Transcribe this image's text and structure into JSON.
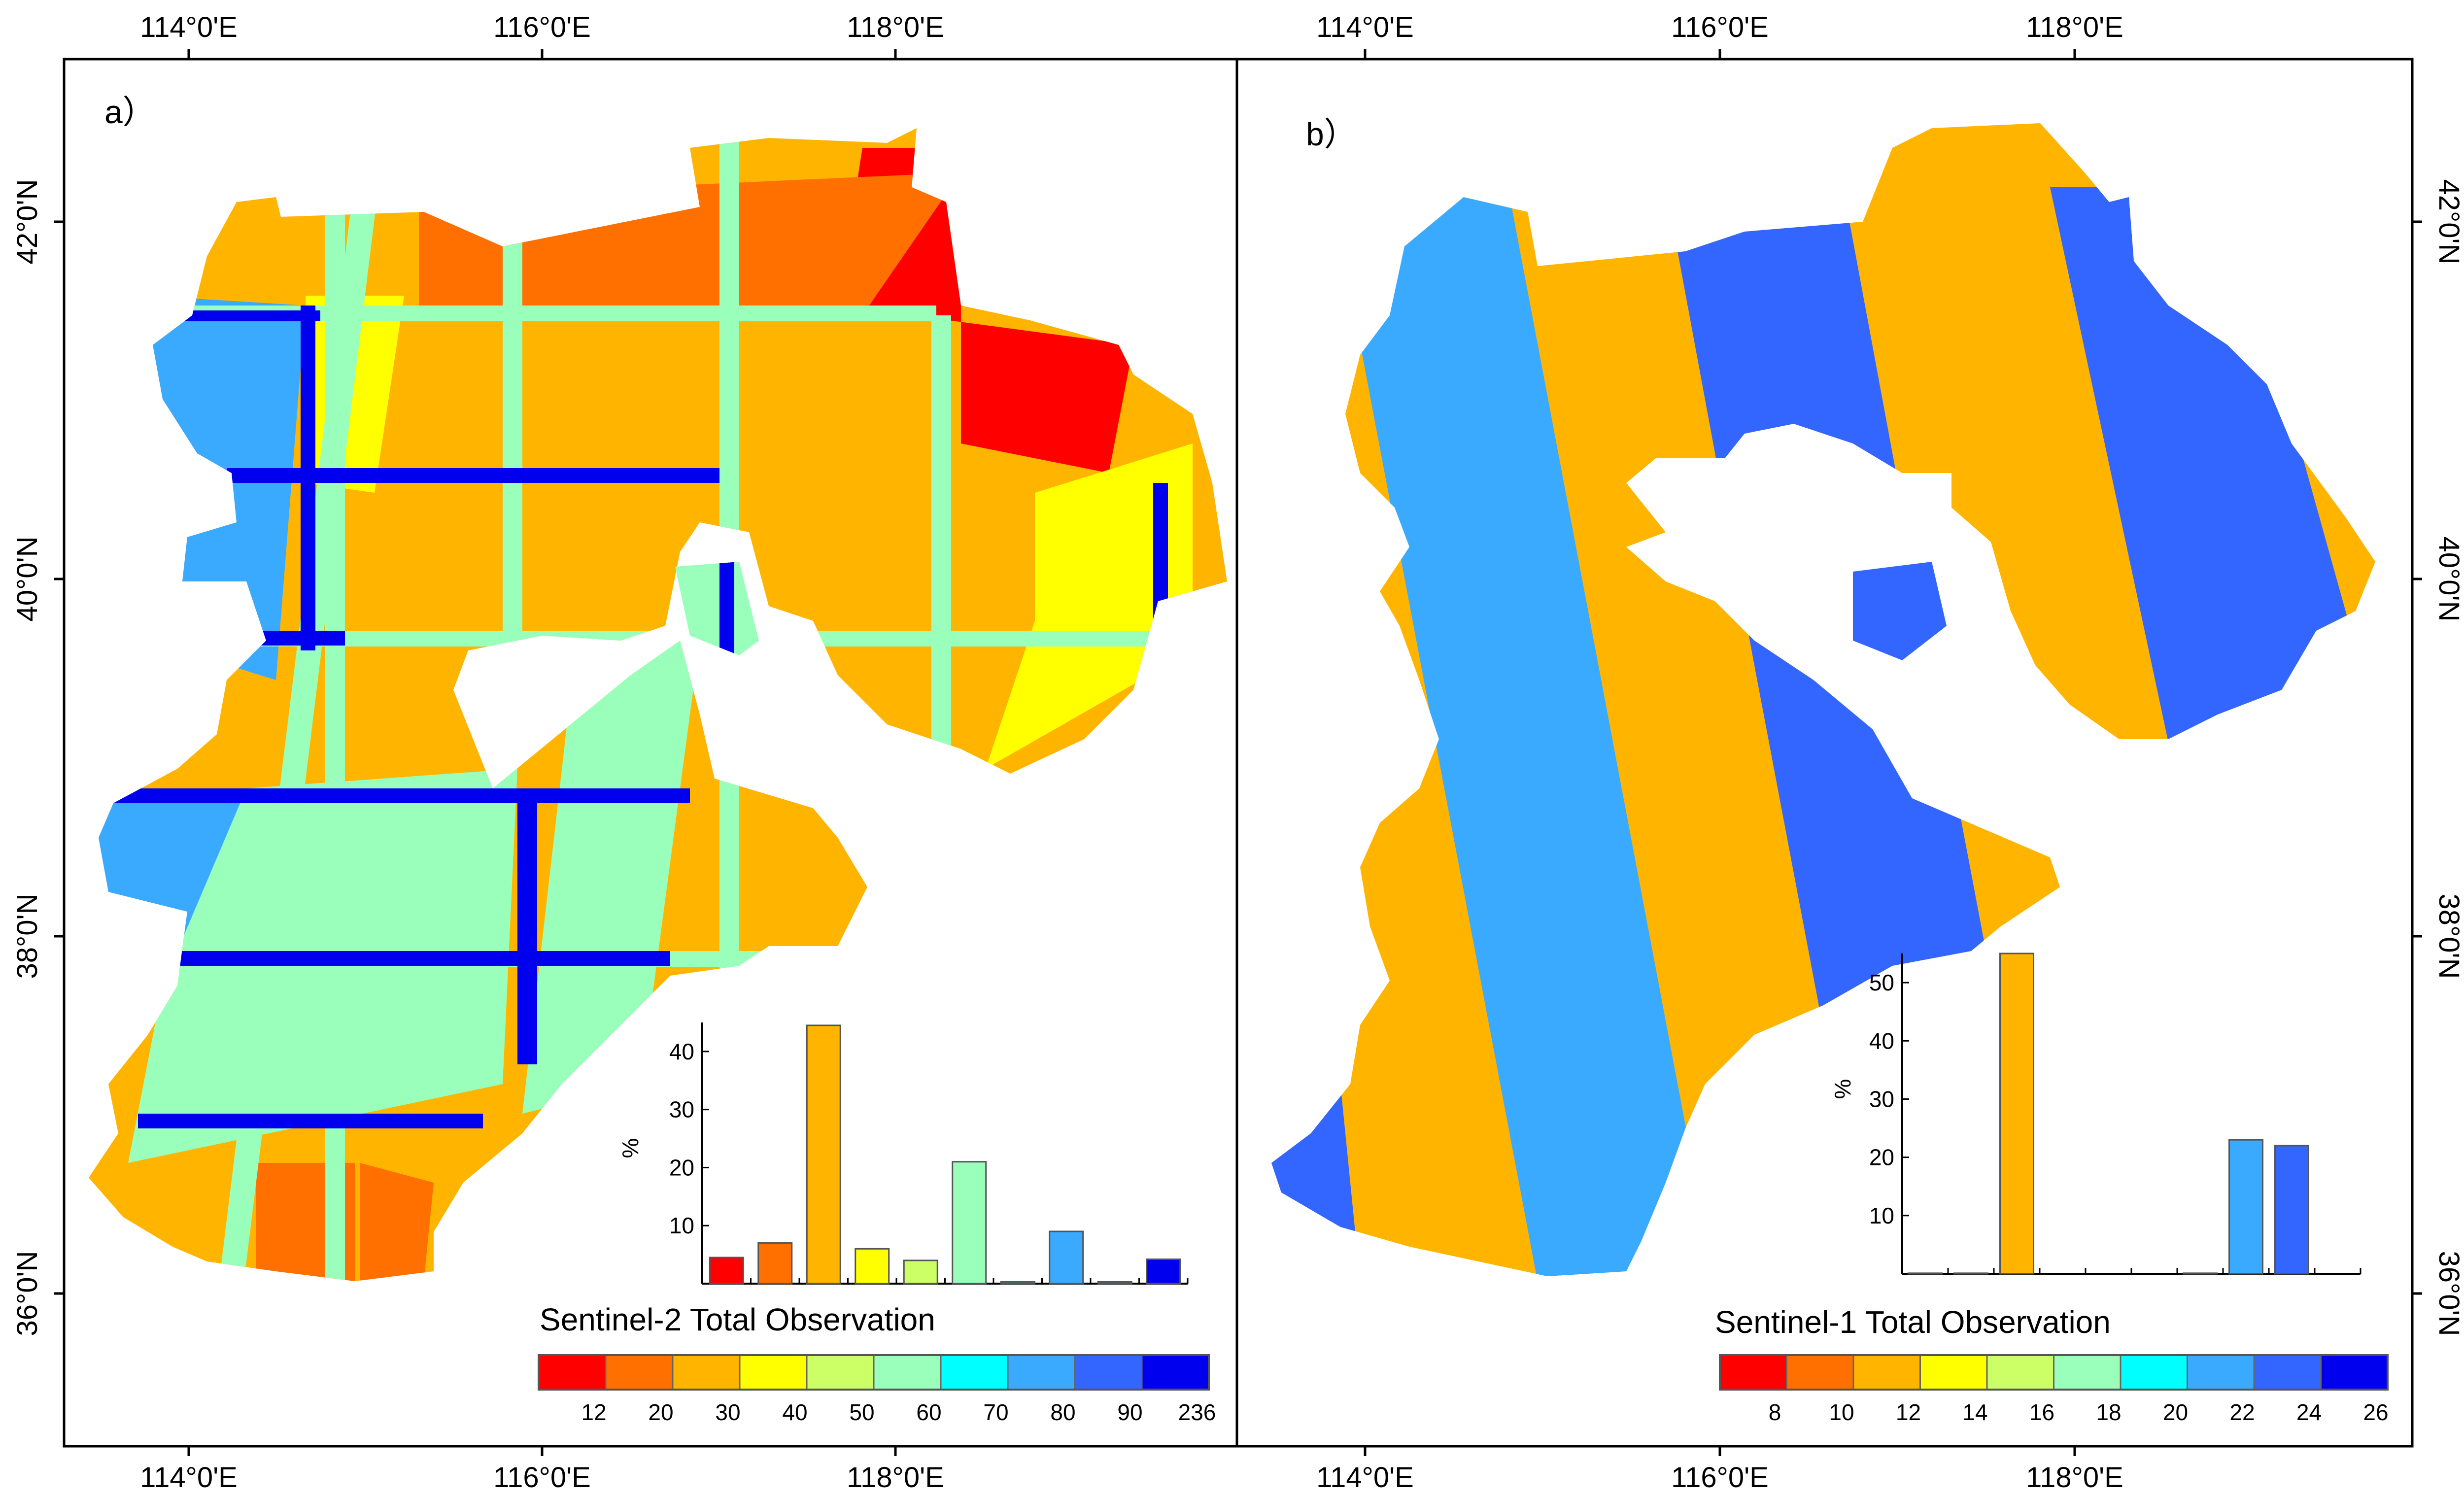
{
  "figure": {
    "top_labels": [
      "114°0'E",
      "116°0'E",
      "118°0'E",
      "114°0'E",
      "116°0'E",
      "118°0'E"
    ],
    "bottom_labels": [
      "114°0'E",
      "116°0'E",
      "118°0'E",
      "114°0'E",
      "116°0'E",
      "118°0'E"
    ],
    "left_labels": [
      "42°0'N",
      "40°0'N",
      "38°0'N",
      "36°0'N"
    ],
    "right_labels": [
      "42°0'N",
      "40°0'N",
      "38°0'N",
      "36°0'N"
    ]
  },
  "panel_a": {
    "label": "a）",
    "legend_title": "Sentinel-2 Total Observation",
    "legend_colors": [
      "#ff0000",
      "#ff7000",
      "#ffb400",
      "#ffff00",
      "#ccff66",
      "#99ffbb",
      "#00ffff",
      "#3aaaff",
      "#3366ff",
      "#0000ee"
    ],
    "legend_ticks": [
      "12",
      "20",
      "30",
      "40",
      "50",
      "60",
      "70",
      "80",
      "90",
      "236"
    ]
  },
  "panel_b": {
    "label": "b）",
    "legend_title": "Sentinel-1 Total Observation",
    "legend_colors": [
      "#ff0000",
      "#ff7000",
      "#ffb400",
      "#ffff00",
      "#ccff66",
      "#99ffbb",
      "#00ffff",
      "#3aaaff",
      "#3366ff",
      "#0000ee"
    ],
    "legend_ticks": [
      "8",
      "10",
      "12",
      "14",
      "16",
      "18",
      "20",
      "22",
      "24",
      "26"
    ]
  },
  "chart_data": [
    {
      "type": "bar",
      "title": "Sentinel-2 Total Observation",
      "ylabel": "%",
      "xlabel": "",
      "ylim": [
        0,
        45
      ],
      "yticks": [
        10,
        20,
        30,
        40
      ],
      "categories": [
        "12",
        "20",
        "30",
        "40",
        "50",
        "60",
        "70",
        "80",
        "90",
        "236"
      ],
      "values": [
        4.5,
        7,
        44.5,
        6,
        4,
        21,
        0.3,
        9,
        0.3,
        4.2
      ],
      "colors": [
        "#ff0000",
        "#ff7000",
        "#ffb400",
        "#ffff00",
        "#ccff66",
        "#99ffbb",
        "#00ffff",
        "#3aaaff",
        "#3366ff",
        "#0000ee"
      ]
    },
    {
      "type": "bar",
      "title": "Sentinel-1 Total Observation",
      "ylabel": "%",
      "xlabel": "",
      "ylim": [
        0,
        55
      ],
      "yticks": [
        10,
        20,
        30,
        40,
        50
      ],
      "categories": [
        "8",
        "10",
        "12",
        "14",
        "16",
        "18",
        "20",
        "22",
        "24",
        "26"
      ],
      "values": [
        0.1,
        0.1,
        55,
        0,
        0,
        0,
        0.1,
        23,
        22,
        0
      ],
      "colors": [
        "#ff0000",
        "#ff7000",
        "#ffb400",
        "#ffff00",
        "#ccff66",
        "#99ffbb",
        "#00ffff",
        "#3aaaff",
        "#3366ff",
        "#0000ee"
      ]
    }
  ]
}
